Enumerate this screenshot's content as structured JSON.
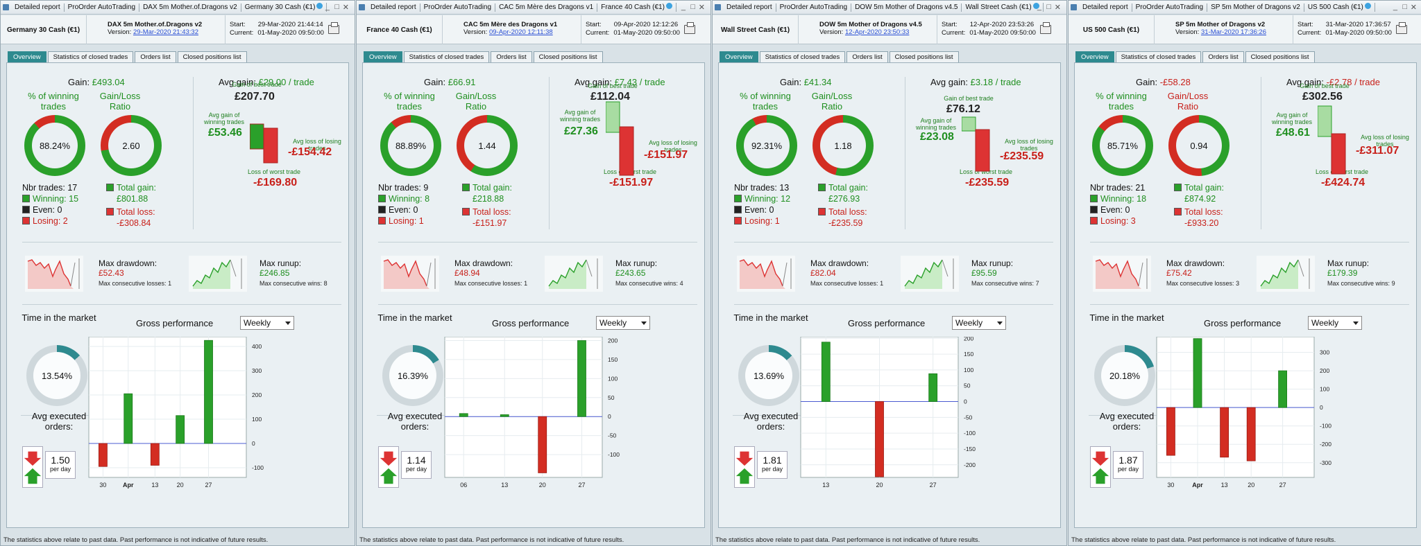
{
  "colors": {
    "green": "#2aa02a",
    "red": "#d32d22",
    "teal": "#2e8a8f"
  },
  "tabs": [
    "Overview",
    "Statistics of closed trades",
    "Orders list",
    "Closed positions list"
  ],
  "labels": {
    "detailed_report": "Detailed report",
    "proorder": "ProOrder AutoTrading",
    "gain": "Gain:",
    "avg_gain": "Avg gain:",
    "pct_win": "% of winning trades",
    "gl_ratio": "Gain/Loss Ratio",
    "nbr": "Nbr trades:",
    "winning": "Winning:",
    "even": "Even:",
    "losing": "Losing:",
    "total_gain": "Total gain:",
    "total_loss": "Total loss:",
    "best": "Gain of best trade",
    "worst": "Loss of worst trade",
    "avg_gain_win": "Avg gain of winning trades",
    "avg_loss_lose": "Avg loss of losing trades",
    "max_dd": "Max drawdown:",
    "max_ru": "Max runup:",
    "cons_loss": "Max consecutive losses:",
    "cons_win": "Max consecutive wins:",
    "time_market": "Time in the market",
    "gross_perf": "Gross performance",
    "weekly": "Weekly",
    "avg_exec": "Avg executed orders:",
    "per_day": "per day",
    "start": "Start:",
    "current": "Current:",
    "footer": "The statistics above relate to past data. Past performance is not indicative of future results."
  },
  "reports": [
    {
      "title_sys": "DAX 5m Mother.of.Dragons v2",
      "instrument": "Germany 30 Cash (€1)",
      "sys_name": "DAX 5m Mother.of.Dragons v2",
      "version": "29-Mar-2020 21:43:32",
      "start": "29-Mar-2020 21:44:14",
      "current": "01-May-2020 09:50:00",
      "gain": "£493.04",
      "avg_gain": "£29.00 / trade",
      "pct_win": "88.24%",
      "pct_win_val": 88.24,
      "ratio": "2.60",
      "ratio_val": 72.2,
      "nbr": "17",
      "winning": "15",
      "even": "0",
      "losing": "2",
      "total_gain": "£801.88",
      "total_loss": "-£308.84",
      "best": "£207.70",
      "avg_win": "£53.46",
      "avg_loss": "-£154.42",
      "worst": "-£169.80",
      "max_dd": "£52.43",
      "cons_loss": "1",
      "max_ru": "£246.85",
      "cons_win": "8",
      "time": "13.54%",
      "time_val": 13.54,
      "orders": "1.50",
      "chart_data": {
        "type": "bar",
        "categories": [
          "30",
          "Apr",
          "13",
          "20",
          "27"
        ],
        "values": [
          -95,
          205,
          -90,
          115,
          425
        ],
        "ylim": [
          -140,
          440
        ],
        "ticks": [
          -100,
          0,
          100,
          200,
          300,
          400
        ],
        "bar_x": [
          0.09,
          0.25,
          0.42,
          0.58,
          0.76
        ]
      }
    },
    {
      "title_sys": "CAC 5m Mère des Dragons v1",
      "instrument": "France 40 Cash (€1)",
      "sys_name": "CAC 5m Mère des Dragons v1",
      "version": "09-Apr-2020 12:11:38",
      "start": "09-Apr-2020 12:12:26",
      "current": "01-May-2020 09:50:00",
      "gain": "£66.91",
      "avg_gain": "£7.43 / trade",
      "pct_win": "88.89%",
      "pct_win_val": 88.89,
      "ratio": "1.44",
      "ratio_val": 59,
      "nbr": "9",
      "winning": "8",
      "even": "0",
      "losing": "1",
      "total_gain": "£218.88",
      "total_loss": "-£151.97",
      "best": "£112.04",
      "avg_win": "£27.36",
      "avg_loss": "-£151.97",
      "worst": "-£151.97",
      "max_dd": "£48.94",
      "cons_loss": "1",
      "max_ru": "£243.65",
      "cons_win": "4",
      "time": "16.39%",
      "time_val": 16.39,
      "orders": "1.14",
      "chart_data": {
        "type": "bar",
        "categories": [
          "06",
          "13",
          "20",
          "27"
        ],
        "values": [
          8,
          5,
          -148,
          200
        ],
        "ylim": [
          -160,
          210
        ],
        "ticks": [
          -100,
          -50,
          0,
          50,
          100,
          150,
          200
        ],
        "bar_x": [
          0.12,
          0.38,
          0.62,
          0.87
        ]
      }
    },
    {
      "title_sys": "DOW 5m Mother of Dragons v4.5",
      "instrument": "Wall Street Cash (€1)",
      "sys_name": "DOW 5m Mother of Dragons v4.5",
      "version": "12-Apr-2020 23:50:33",
      "start": "12-Apr-2020 23:53:26",
      "current": "01-May-2020 09:50:00",
      "gain": "£41.34",
      "avg_gain": "£3.18 / trade",
      "pct_win": "92.31%",
      "pct_win_val": 92.31,
      "ratio": "1.18",
      "ratio_val": 54,
      "nbr": "13",
      "winning": "12",
      "even": "0",
      "losing": "1",
      "total_gain": "£276.93",
      "total_loss": "-£235.59",
      "best": "£76.12",
      "avg_win": "£23.08",
      "avg_loss": "-£235.59",
      "worst": "-£235.59",
      "max_dd": "£82.04",
      "cons_loss": "1",
      "max_ru": "£95.59",
      "cons_win": "7",
      "time": "13.69%",
      "time_val": 13.69,
      "orders": "1.81",
      "chart_data": {
        "type": "bar",
        "categories": [
          "13",
          "20",
          "27"
        ],
        "values": [
          188,
          -238,
          88
        ],
        "ylim": [
          -240,
          205
        ],
        "ticks": [
          -200,
          -150,
          -100,
          -50,
          0,
          50,
          100,
          150,
          200
        ],
        "bar_x": [
          0.16,
          0.5,
          0.84
        ]
      }
    },
    {
      "title_sys": "SP 5m Mother of Dragons v2",
      "instrument": "US 500 Cash (€1)",
      "sys_name": "SP 5m Mother of Dragons v2",
      "version": "31-Mar-2020 17:36:26",
      "start": "31-Mar-2020 17:36:57",
      "current": "01-May-2020 09:50:00",
      "gain": "-£58.28",
      "avg_gain": "-£2.78 / trade",
      "pct_win": "85.71%",
      "pct_win_val": 85.71,
      "ratio": "0.94",
      "ratio_val": 48.5,
      "nbr": "21",
      "winning": "18",
      "even": "0",
      "losing": "3",
      "total_gain": "£874.92",
      "total_loss": "-£933.20",
      "best": "£302.56",
      "avg_win": "£48.61",
      "avg_loss": "-£311.07",
      "worst": "-£424.74",
      "max_dd": "£75.42",
      "cons_loss": "3",
      "max_ru": "£179.39",
      "cons_win": "9",
      "time": "20.18%",
      "time_val": 20.18,
      "orders": "1.87",
      "chart_data": {
        "type": "bar",
        "categories": [
          "30",
          "Apr",
          "13",
          "20",
          "27"
        ],
        "values": [
          -260,
          375,
          -270,
          -290,
          200
        ],
        "ylim": [
          -380,
          385
        ],
        "ticks": [
          -300,
          -200,
          -100,
          0,
          100,
          200,
          300
        ],
        "bar_x": [
          0.09,
          0.26,
          0.43,
          0.6,
          0.8
        ]
      }
    }
  ]
}
